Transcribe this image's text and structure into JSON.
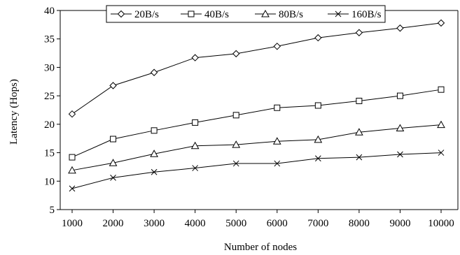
{
  "chart_data": {
    "type": "line",
    "title": "",
    "xlabel": "Number of nodes",
    "ylabel": "Latency (Hops)",
    "x": [
      1000,
      2000,
      3000,
      4000,
      5000,
      6000,
      7000,
      8000,
      9000,
      10000
    ],
    "ylim": [
      5,
      40
    ],
    "yticks": [
      5,
      10,
      15,
      20,
      25,
      30,
      35,
      40
    ],
    "grid": false,
    "legend_position": "top",
    "series": [
      {
        "name": "20B/s",
        "marker": "diamond",
        "values": [
          21.8,
          26.8,
          29.1,
          31.7,
          32.4,
          33.7,
          35.2,
          36.1,
          36.9,
          37.8
        ]
      },
      {
        "name": "40B/s",
        "marker": "square",
        "values": [
          14.2,
          17.4,
          18.9,
          20.3,
          21.6,
          22.9,
          23.3,
          24.1,
          25.0,
          26.1
        ]
      },
      {
        "name": "80B/s",
        "marker": "triangle",
        "values": [
          11.9,
          13.2,
          14.8,
          16.2,
          16.4,
          17.0,
          17.3,
          18.6,
          19.3,
          19.9
        ]
      },
      {
        "name": "160B/s",
        "marker": "x",
        "values": [
          8.7,
          10.6,
          11.6,
          12.3,
          13.1,
          13.1,
          14.0,
          14.2,
          14.7,
          15.0
        ]
      }
    ],
    "colors": {
      "line": "#000000",
      "background": "#ffffff"
    }
  }
}
